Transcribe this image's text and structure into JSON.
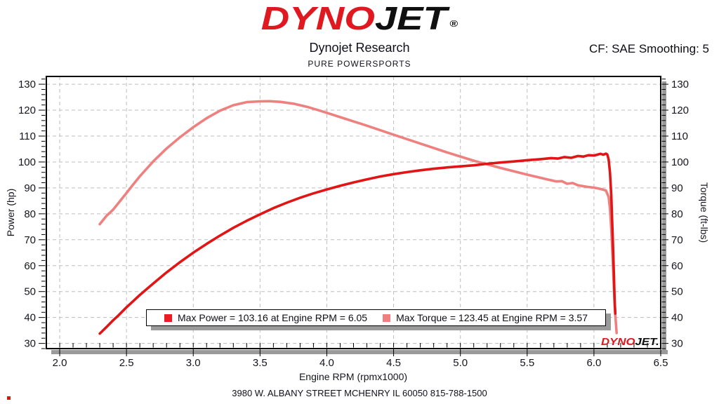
{
  "header": {
    "logo": {
      "dyno": "DYNO",
      "jet": "JET",
      "registered": "®"
    },
    "title": "Dynojet Research",
    "subtitle": "PURE POWERSPORTS",
    "smoothing_label": "CF: SAE Smoothing: 5"
  },
  "watermark": {
    "dyno": "DYNO",
    "jet": "JET."
  },
  "footer": {
    "address": "3980 W. ALBANY STREET MCHENRY IL 60050 815-788-1500"
  },
  "chart_data": {
    "type": "line",
    "title": "",
    "xlabel": "Engine RPM (rpmx1000)",
    "ylabel_left": "Power (hp)",
    "ylabel_right": "Torque (ft-lbs)",
    "xlim": [
      1.9,
      6.5
    ],
    "ylim": [
      28,
      133
    ],
    "grid": true,
    "legend_position": "bottom-center-inside",
    "x_major_ticks": [
      2.0,
      2.5,
      3.0,
      3.5,
      4.0,
      4.5,
      5.0,
      5.5,
      6.0,
      6.5
    ],
    "x_tick_labels": [
      "2.0",
      "2.5",
      "3.0",
      "3.5",
      "4.0",
      "4.5",
      "5.0",
      "5.5",
      "6.0",
      "6.5"
    ],
    "y_major_ticks": [
      30,
      40,
      50,
      60,
      70,
      80,
      90,
      100,
      110,
      120,
      130
    ],
    "y_tick_labels": [
      "30",
      "40",
      "50",
      "60",
      "70",
      "80",
      "90",
      "100",
      "110",
      "120",
      "130"
    ],
    "x_minor_step": 0.1,
    "y_minor_step": 2,
    "max_power": {
      "value": 103.16,
      "rpm": 6.05
    },
    "max_torque": {
      "value": 123.45,
      "rpm": 3.57
    },
    "legend": [
      {
        "label": "Max Power = 103.16 at Engine RPM = 6.05",
        "color": "#ed1c24"
      },
      {
        "label": "Max Torque = 123.45 at Engine RPM = 3.57",
        "color": "#f08080"
      }
    ],
    "colors": {
      "grid": "#bdbdbd",
      "shadow": "#9a9a9a",
      "text": "#15151f",
      "border": "#000000"
    },
    "series": [
      {
        "id": "torque",
        "name": "Torque (ft-lbs)",
        "axis": "right",
        "color": "#ef8080",
        "points": [
          [
            2.3,
            76.0
          ],
          [
            2.35,
            79.2
          ],
          [
            2.4,
            81.6
          ],
          [
            2.45,
            84.8
          ],
          [
            2.5,
            88.0
          ],
          [
            2.55,
            91.3
          ],
          [
            2.6,
            94.5
          ],
          [
            2.7,
            100.2
          ],
          [
            2.8,
            105.2
          ],
          [
            2.9,
            109.5
          ],
          [
            3.0,
            113.4
          ],
          [
            3.1,
            116.9
          ],
          [
            3.2,
            119.8
          ],
          [
            3.3,
            121.9
          ],
          [
            3.4,
            123.1
          ],
          [
            3.5,
            123.4
          ],
          [
            3.57,
            123.45
          ],
          [
            3.65,
            123.2
          ],
          [
            3.75,
            122.5
          ],
          [
            3.85,
            121.3
          ],
          [
            3.95,
            119.8
          ],
          [
            4.1,
            117.3
          ],
          [
            4.3,
            114.0
          ],
          [
            4.5,
            110.5
          ],
          [
            4.7,
            107.1
          ],
          [
            4.9,
            103.7
          ],
          [
            5.1,
            100.5
          ],
          [
            5.3,
            97.7
          ],
          [
            5.5,
            95.1
          ],
          [
            5.65,
            93.3
          ],
          [
            5.72,
            92.5
          ],
          [
            5.76,
            92.6
          ],
          [
            5.8,
            91.6
          ],
          [
            5.84,
            91.9
          ],
          [
            5.88,
            91.0
          ],
          [
            5.95,
            90.4
          ],
          [
            6.0,
            90.1
          ],
          [
            6.05,
            89.6
          ],
          [
            6.09,
            89.0
          ],
          [
            6.11,
            86.5
          ],
          [
            6.12,
            82.0
          ],
          [
            6.13,
            74.0
          ],
          [
            6.14,
            63.0
          ],
          [
            6.15,
            51.0
          ],
          [
            6.16,
            41.0
          ],
          [
            6.17,
            34.0
          ]
        ]
      },
      {
        "id": "power",
        "name": "Power (hp)",
        "axis": "left",
        "color": "#e11515",
        "points": [
          [
            2.3,
            33.8
          ],
          [
            2.35,
            36.3
          ],
          [
            2.4,
            38.9
          ],
          [
            2.44,
            40.8
          ],
          [
            2.5,
            43.9
          ],
          [
            2.55,
            46.3
          ],
          [
            2.6,
            48.7
          ],
          [
            2.7,
            53.1
          ],
          [
            2.8,
            57.4
          ],
          [
            2.9,
            61.3
          ],
          [
            3.0,
            65.0
          ],
          [
            3.1,
            68.4
          ],
          [
            3.2,
            71.6
          ],
          [
            3.3,
            74.6
          ],
          [
            3.4,
            77.3
          ],
          [
            3.5,
            79.8
          ],
          [
            3.6,
            82.2
          ],
          [
            3.7,
            84.3
          ],
          [
            3.8,
            86.2
          ],
          [
            3.9,
            87.9
          ],
          [
            4.0,
            89.4
          ],
          [
            4.1,
            90.8
          ],
          [
            4.2,
            92.1
          ],
          [
            4.3,
            93.3
          ],
          [
            4.4,
            94.4
          ],
          [
            4.5,
            95.3
          ],
          [
            4.6,
            96.1
          ],
          [
            4.7,
            96.8
          ],
          [
            4.8,
            97.4
          ],
          [
            4.9,
            97.9
          ],
          [
            5.0,
            98.3
          ],
          [
            5.1,
            98.7
          ],
          [
            5.2,
            99.3
          ],
          [
            5.3,
            99.8
          ],
          [
            5.4,
            100.2
          ],
          [
            5.5,
            100.7
          ],
          [
            5.6,
            101.1
          ],
          [
            5.68,
            101.5
          ],
          [
            5.73,
            101.3
          ],
          [
            5.78,
            101.9
          ],
          [
            5.83,
            101.6
          ],
          [
            5.88,
            102.3
          ],
          [
            5.92,
            102.1
          ],
          [
            5.96,
            102.6
          ],
          [
            6.0,
            102.5
          ],
          [
            6.03,
            102.9
          ],
          [
            6.05,
            103.16
          ],
          [
            6.07,
            102.8
          ],
          [
            6.09,
            103.2
          ],
          [
            6.1,
            102.9
          ],
          [
            6.11,
            101.0
          ],
          [
            6.12,
            96.0
          ],
          [
            6.13,
            87.0
          ],
          [
            6.14,
            72.0
          ],
          [
            6.15,
            56.0
          ],
          [
            6.155,
            46.0
          ],
          [
            6.16,
            41.5
          ]
        ]
      }
    ]
  }
}
